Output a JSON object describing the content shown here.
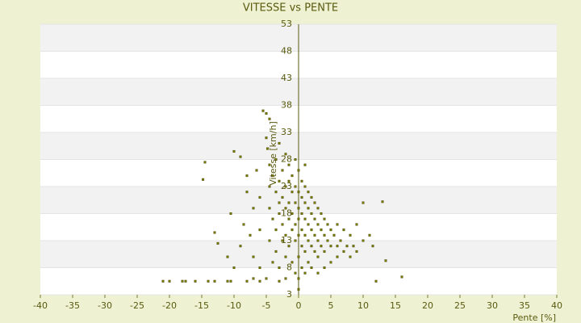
{
  "chart_data": {
    "type": "scatter",
    "title": "VITESSE vs PENTE",
    "x_label": "Pente [%]",
    "y_label": "Vitesse [km/h]",
    "color": "#7a7a00",
    "xlim": [
      -40,
      40
    ],
    "xticks": [
      -40,
      -35,
      -30,
      -25,
      -20,
      -15,
      -10,
      -5,
      0,
      5,
      10,
      15,
      20,
      25,
      30,
      35,
      40
    ],
    "ylim": [
      3,
      53
    ],
    "yticks": [
      3,
      8,
      13,
      18,
      23,
      28,
      33,
      38,
      43,
      48,
      53
    ],
    "grid": true,
    "x": [
      -21,
      -20,
      -18,
      -17.5,
      -16,
      -14,
      -13,
      -11,
      -10.5,
      -8,
      -7,
      -6,
      -5,
      -3,
      -2,
      -14.5,
      -14.8,
      -13,
      -12.5,
      -10,
      -9,
      -10.5,
      -11,
      -10,
      -9,
      -8.5,
      -8,
      -8,
      -7.5,
      -7,
      -7,
      -6.5,
      -6,
      -6,
      -6,
      -5.5,
      -5,
      -4.5,
      -5,
      -4.8,
      -4.5,
      -4.5,
      -4.5,
      -4.5,
      -4,
      -4,
      -4,
      -3.5,
      -3.5,
      -3.5,
      -3.5,
      -3,
      -3,
      -3,
      -3,
      -3,
      -2.5,
      -2.5,
      -2.5,
      -2.5,
      -2,
      -2,
      -2,
      -2,
      -2,
      -1.5,
      -1.5,
      -1.5,
      -1.5,
      -1.5,
      -1,
      -1,
      -1,
      -1,
      -1,
      -0.5,
      -0.5,
      -0.5,
      -0.5,
      -0.5,
      -0.5,
      0,
      0,
      0,
      0,
      0,
      0,
      0,
      0.5,
      0.5,
      0.5,
      0.5,
      0.5,
      0.5,
      1,
      1,
      1,
      1,
      1,
      1,
      1,
      1.5,
      1.5,
      1.5,
      1.5,
      1.5,
      2,
      2,
      2,
      2,
      2,
      2.5,
      2.5,
      2.5,
      2.5,
      3,
      3,
      3,
      3,
      3,
      3.5,
      3.5,
      3.5,
      4,
      4,
      4,
      4,
      4.5,
      4.5,
      5,
      5,
      5,
      5.5,
      6,
      6,
      6,
      6.5,
      7,
      7,
      7.5,
      8,
      8,
      8.5,
      9,
      9,
      10,
      10,
      11,
      12,
      13,
      13.5,
      16,
      11.5,
      0
    ],
    "values": [
      5.5,
      5.5,
      5.5,
      5.5,
      5.5,
      5.5,
      5.5,
      5.5,
      5.5,
      5.5,
      6,
      5.5,
      6,
      5.5,
      6,
      27.5,
      24.3,
      14.5,
      12.5,
      29.5,
      28.5,
      18,
      10,
      8,
      12,
      16,
      22,
      25,
      14,
      19,
      10,
      26,
      21,
      15,
      8,
      37,
      36.5,
      35.5,
      32,
      30,
      27,
      23,
      19,
      13,
      9,
      25,
      17,
      28,
      22,
      15,
      11,
      31,
      24,
      20,
      18,
      8,
      26,
      21,
      16,
      13,
      29,
      23,
      19,
      14,
      10,
      27,
      24,
      20,
      17,
      12,
      25,
      22,
      18,
      15,
      9,
      28,
      23,
      20,
      16,
      13,
      7,
      26,
      22,
      19,
      17,
      14,
      10,
      6,
      24,
      21,
      18,
      15,
      12,
      8,
      27,
      23,
      20,
      17,
      14,
      11,
      7,
      22,
      19,
      16,
      13,
      9,
      21,
      18,
      15,
      12,
      8,
      20,
      17,
      14,
      11,
      19,
      16,
      13,
      10,
      7,
      18,
      15,
      12,
      17,
      14,
      11,
      8,
      16,
      13,
      15,
      12,
      9,
      14,
      16,
      12,
      10,
      13,
      15,
      11,
      12,
      14,
      10,
      12,
      16,
      11,
      20,
      13,
      14,
      5.5,
      20.2,
      9.3,
      6.3,
      12,
      4
    ]
  }
}
